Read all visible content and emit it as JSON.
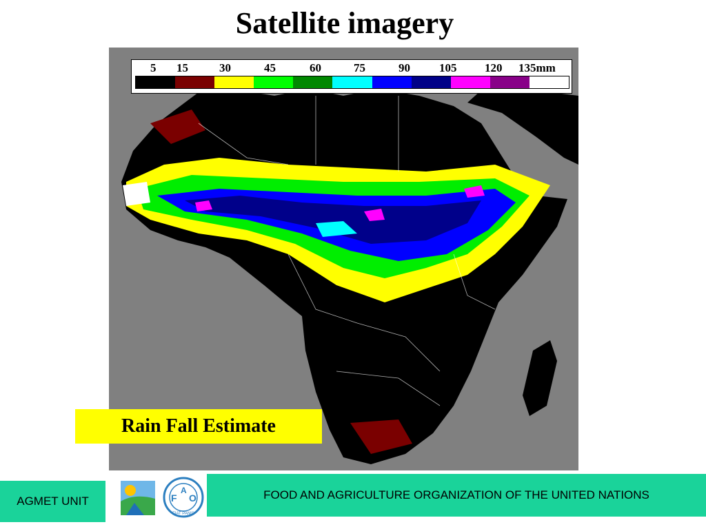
{
  "title": "Satellite imagery",
  "legend": {
    "labels": [
      "5",
      "15",
      "30",
      "45",
      "60",
      "75",
      "90",
      "105",
      "120",
      "135mm"
    ],
    "colors": [
      "#000000",
      "#7a0000",
      "#ffff00",
      "#00ff00",
      "#008800",
      "#00ffff",
      "#0000ff",
      "#000088",
      "#ff00ff",
      "#880088",
      "#ffffff"
    ]
  },
  "map": {
    "description_icon": "africa-rainfall-map",
    "background_color": "#808080",
    "land_color": "#000000"
  },
  "caption": "Rain Fall Estimate",
  "footer": {
    "left_label": "AGMET UNIT",
    "org_name": "FOOD AND AGRICULTURE ORGANIZATION OF THE UNITED NATIONS",
    "logo_letters": [
      "F",
      "A",
      "O"
    ],
    "logo_motto": "FIAT PANIS",
    "accent": "#1ad39a"
  }
}
